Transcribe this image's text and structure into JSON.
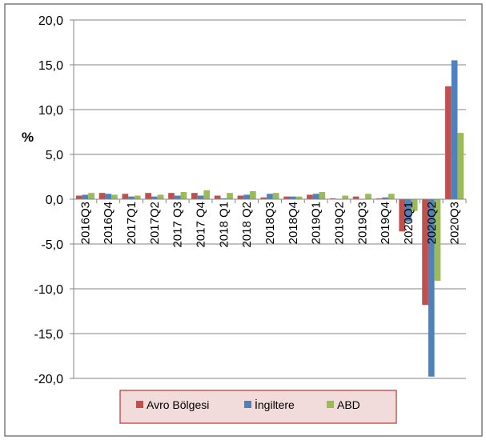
{
  "chart_data": {
    "type": "bar",
    "title": "",
    "xlabel": "",
    "ylabel": "%",
    "ylim": [
      -20,
      20
    ],
    "yticks": [
      "20,0",
      "15,0",
      "10,0",
      "5,0",
      "0,0",
      "-5,0",
      "-10,0",
      "-15,0",
      "-20,0"
    ],
    "ytick_values": [
      20,
      15,
      10,
      5,
      0,
      -5,
      -10,
      -15,
      -20
    ],
    "grid": true,
    "legend_position": "bottom",
    "categories": [
      "2016Q3",
      "2016Q4",
      "2017Q1",
      "2017Q2",
      "2017 Q3",
      "2017 Q4",
      "2018 Q1",
      "2018 Q2",
      "2018Q3",
      "2018Q4",
      "2019Q1",
      "2019Q2",
      "2019Q3",
      "2019Q4",
      "2020Q1",
      "2020Q2",
      "2020Q3"
    ],
    "series": [
      {
        "name": "Avro Bölgesi",
        "color": "#c0504d",
        "values": [
          0.4,
          0.7,
          0.6,
          0.7,
          0.7,
          0.7,
          0.4,
          0.4,
          0.2,
          0.3,
          0.5,
          0.1,
          0.3,
          0.1,
          -3.6,
          -11.8,
          12.6
        ]
      },
      {
        "name": "İngiltere",
        "color": "#4f81bd",
        "values": [
          0.5,
          0.6,
          0.3,
          0.3,
          0.4,
          0.4,
          0.1,
          0.5,
          0.6,
          0.3,
          0.6,
          0.0,
          0.0,
          0.2,
          -2.5,
          -19.8,
          15.5
        ]
      },
      {
        "name": "ABD",
        "color": "#9bbb59",
        "values": [
          0.7,
          0.5,
          0.4,
          0.5,
          0.8,
          1.0,
          0.7,
          0.9,
          0.7,
          0.3,
          0.8,
          0.4,
          0.6,
          0.6,
          -1.3,
          -9.1,
          7.4
        ]
      }
    ],
    "colors": {
      "frame_border": "#595959",
      "legend_border": "#c0504d",
      "legend_background": "#f2dcdb",
      "grid": "#868686"
    }
  }
}
